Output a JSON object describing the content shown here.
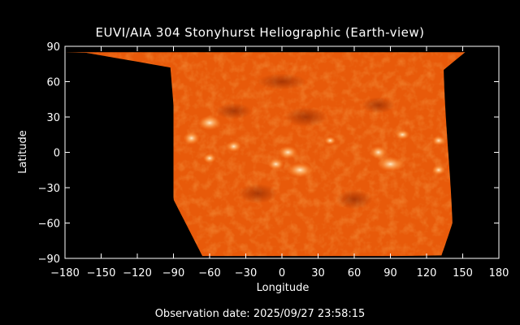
{
  "title": "EUVI/AIA 304 Stonyhurst Heliographic (Earth-view)",
  "footer": {
    "label": "Observation date:",
    "date": "2025/09/27 23:58:15"
  },
  "colors": {
    "background": "#000000",
    "map_base": "#e85a0a",
    "map_dark": "#b83a00",
    "map_bright": "#ffd8a0",
    "axis": "#ffffff"
  },
  "chart_data": {
    "type": "heatmap",
    "title": "EUVI/AIA 304 Stonyhurst Heliographic (Earth-view)",
    "xlabel": "Longitude",
    "ylabel": "Latitude",
    "xlim": [
      -180,
      180
    ],
    "ylim": [
      -90,
      90
    ],
    "xticks": [
      -180,
      -150,
      -120,
      -90,
      -60,
      -30,
      0,
      30,
      60,
      90,
      120,
      150,
      180
    ],
    "yticks": [
      -90,
      -60,
      -30,
      0,
      30,
      60,
      90
    ],
    "grid": false
  }
}
